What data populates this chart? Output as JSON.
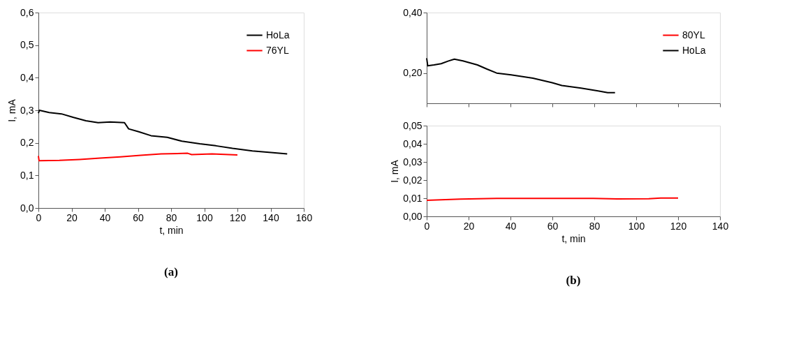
{
  "chart_data": [
    {
      "type": "line",
      "xlabel": "t, min",
      "ylabel": "I, mA",
      "legend": "top right",
      "grid": false,
      "xlim": [
        0,
        160
      ],
      "xticks": [
        0,
        20,
        40,
        60,
        80,
        100,
        120,
        140,
        160
      ],
      "ylim": [
        0,
        0.6
      ],
      "yticks": [
        {
          "value": 0,
          "label": "0,0"
        },
        {
          "value": 0.1,
          "label": "0,1"
        },
        {
          "value": 0.2,
          "label": "0,2"
        },
        {
          "value": 0.3,
          "label": "0,3"
        },
        {
          "value": 0.4,
          "label": "0,4"
        },
        {
          "value": 0.5,
          "label": "0,5"
        },
        {
          "value": 0.6,
          "label": "0,6"
        }
      ],
      "annotations": [
        "(a)"
      ],
      "series": [
        {
          "name": "HoLa",
          "color": "#000000",
          "x": [
            0,
            0.6,
            6.5,
            13.9,
            21.2,
            28.6,
            36,
            43.3,
            51.9,
            54.4,
            60.5,
            67.9,
            77.7,
            86.5,
            97.3,
            107,
            117,
            129,
            141.5,
            150
          ],
          "values": [
            0.291,
            0.3,
            0.293,
            0.289,
            0.278,
            0.268,
            0.262,
            0.264,
            0.262,
            0.243,
            0.234,
            0.222,
            0.217,
            0.205,
            0.197,
            0.191,
            0.183,
            0.175,
            0.17,
            0.166
          ]
        },
        {
          "name": "76YL",
          "color": "#ff0000",
          "x": [
            0,
            0.4,
            12.6,
            24.9,
            37.2,
            49.4,
            61.7,
            74,
            90,
            92.4,
            104.7,
            120
          ],
          "values": [
            0.16,
            0.145,
            0.146,
            0.149,
            0.153,
            0.157,
            0.162,
            0.166,
            0.168,
            0.164,
            0.166,
            0.163
          ]
        }
      ]
    },
    {
      "type": "line",
      "legend": "top right",
      "grid": false,
      "tick_labels": "y",
      "xlim": [
        0,
        140
      ],
      "xticks": [
        0,
        20,
        40,
        60,
        80,
        100,
        120,
        140
      ],
      "ylim": [
        0.1,
        0.4
      ],
      "yticks": [
        {
          "value": 0.2,
          "label": "0,20"
        },
        {
          "value": 0.4,
          "label": "0,40"
        }
      ],
      "series": [
        {
          "name": "HoLa",
          "color": "#000000",
          "x": [
            0,
            0.5,
            3.5,
            6.9,
            10.4,
            13.2,
            17.3,
            24.2,
            28.8,
            33.4,
            40.3,
            50.7,
            59.9,
            64.5,
            73.7,
            81.8,
            86.4,
            89.9
          ],
          "values": [
            0.249,
            0.224,
            0.227,
            0.231,
            0.24,
            0.246,
            0.24,
            0.227,
            0.213,
            0.2,
            0.194,
            0.183,
            0.168,
            0.159,
            0.15,
            0.141,
            0.135,
            0.135
          ]
        }
      ]
    },
    {
      "type": "line",
      "xlabel": "t, min",
      "ylabel": "I, mA",
      "grid": false,
      "xlim": [
        0,
        140
      ],
      "xticks": [
        0,
        20,
        40,
        60,
        80,
        100,
        120,
        140
      ],
      "ylim": [
        0,
        0.05
      ],
      "yticks": [
        {
          "value": 0,
          "label": "0,00"
        },
        {
          "value": 0.01,
          "label": "0,01"
        },
        {
          "value": 0.02,
          "label": "0,02"
        },
        {
          "value": 0.03,
          "label": "0,03"
        },
        {
          "value": 0.04,
          "label": "0,04"
        },
        {
          "value": 0.05,
          "label": "0,05"
        }
      ],
      "annotations": [
        "(b)"
      ],
      "series": [
        {
          "name": "80YL",
          "color": "#ff0000",
          "x": [
            0,
            16.1,
            33.4,
            56.5,
            79.5,
            91,
            106,
            111.7,
            120
          ],
          "values": [
            0.0088,
            0.0095,
            0.0099,
            0.0099,
            0.0099,
            0.0096,
            0.0097,
            0.0101,
            0.0101
          ]
        }
      ]
    }
  ]
}
